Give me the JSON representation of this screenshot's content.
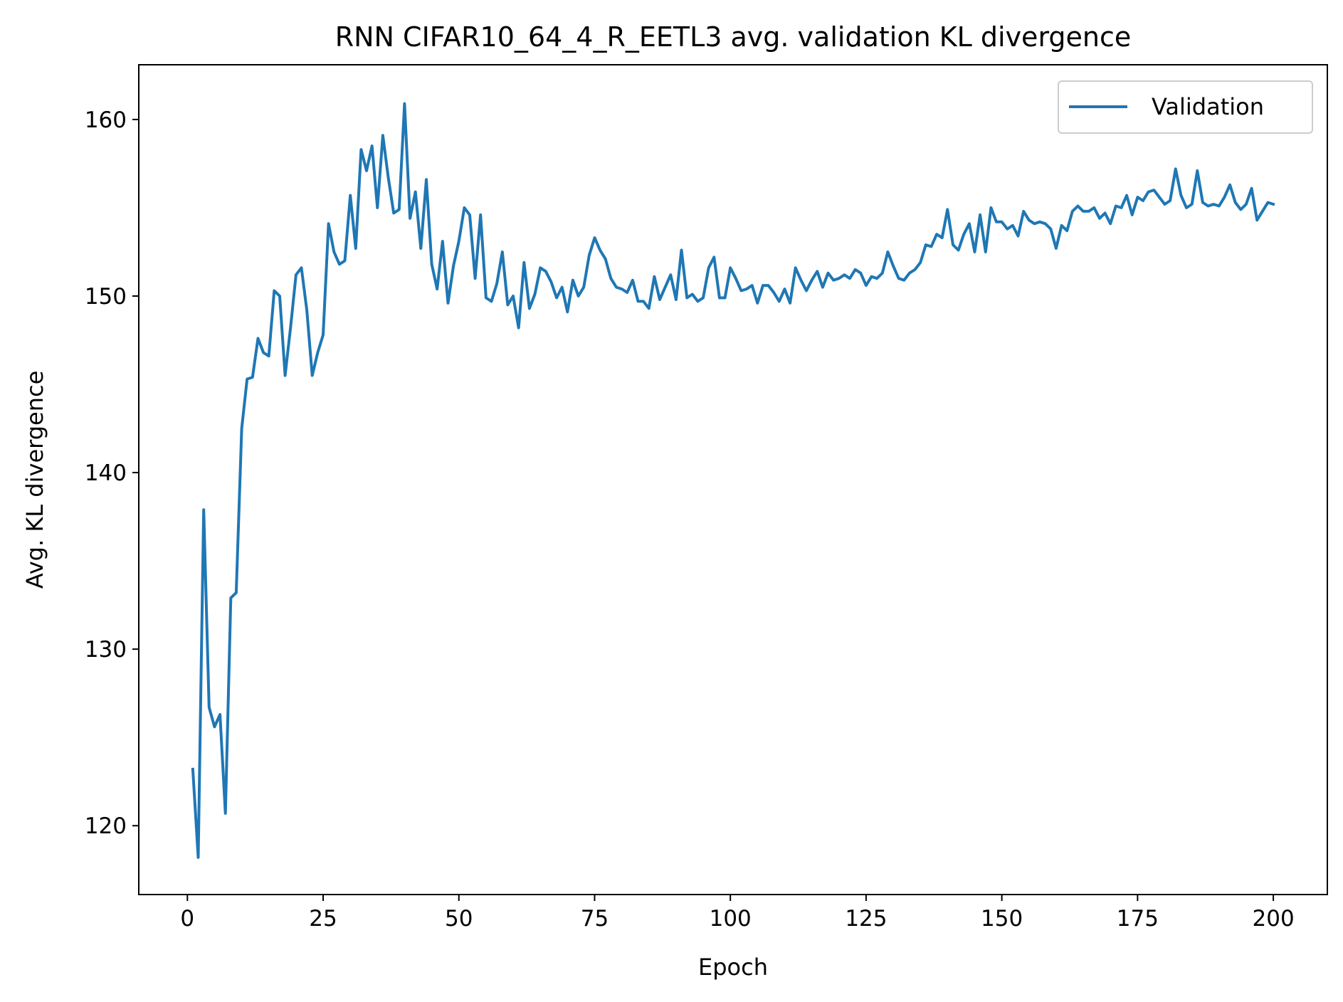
{
  "chart_data": {
    "type": "line",
    "title": "RNN CIFAR10_64_4_R_EETL3 avg. validation KL divergence",
    "xlabel": "Epoch",
    "ylabel": "Avg. KL divergence",
    "xlim": [
      -8.95,
      209.95
    ],
    "ylim": [
      116.1,
      163.1
    ],
    "xticks": [
      0,
      25,
      50,
      75,
      100,
      125,
      150,
      175,
      200
    ],
    "yticks": [
      120,
      130,
      140,
      150,
      160
    ],
    "grid": false,
    "legend": {
      "position": "top-right",
      "entries": [
        "Validation"
      ]
    },
    "colors": {
      "Validation": "#1f77b4"
    },
    "series": [
      {
        "name": "Validation",
        "x": [
          1,
          2,
          3,
          4,
          5,
          6,
          7,
          8,
          9,
          10,
          11,
          12,
          13,
          14,
          15,
          16,
          17,
          18,
          19,
          20,
          21,
          22,
          23,
          24,
          25,
          26,
          27,
          28,
          29,
          30,
          31,
          32,
          33,
          34,
          35,
          36,
          37,
          38,
          39,
          40,
          41,
          42,
          43,
          44,
          45,
          46,
          47,
          48,
          49,
          50,
          51,
          52,
          53,
          54,
          55,
          56,
          57,
          58,
          59,
          60,
          61,
          62,
          63,
          64,
          65,
          66,
          67,
          68,
          69,
          70,
          71,
          72,
          73,
          74,
          75,
          76,
          77,
          78,
          79,
          80,
          81,
          82,
          83,
          84,
          85,
          86,
          87,
          88,
          89,
          90,
          91,
          92,
          93,
          94,
          95,
          96,
          97,
          98,
          99,
          100,
          101,
          102,
          103,
          104,
          105,
          106,
          107,
          108,
          109,
          110,
          111,
          112,
          113,
          114,
          115,
          116,
          117,
          118,
          119,
          120,
          121,
          122,
          123,
          124,
          125,
          126,
          127,
          128,
          129,
          130,
          131,
          132,
          133,
          134,
          135,
          136,
          137,
          138,
          139,
          140,
          141,
          142,
          143,
          144,
          145,
          146,
          147,
          148,
          149,
          150,
          151,
          152,
          153,
          154,
          155,
          156,
          157,
          158,
          159,
          160,
          161,
          162,
          163,
          164,
          165,
          166,
          167,
          168,
          169,
          170,
          171,
          172,
          173,
          174,
          175,
          176,
          177,
          178,
          179,
          180,
          181,
          182,
          183,
          184,
          185,
          186,
          187,
          188,
          189,
          190,
          191,
          192,
          193,
          194,
          195,
          196,
          197,
          198,
          199,
          200
        ],
        "y": [
          123.2,
          118.2,
          137.9,
          126.7,
          125.6,
          126.3,
          120.7,
          132.9,
          133.2,
          142.5,
          145.3,
          145.4,
          147.6,
          146.8,
          146.6,
          150.3,
          150.0,
          145.5,
          148.2,
          151.2,
          151.6,
          149.2,
          145.5,
          146.8,
          147.8,
          154.1,
          152.5,
          151.8,
          152.0,
          155.7,
          152.7,
          158.3,
          157.1,
          158.5,
          155.0,
          159.1,
          156.7,
          154.7,
          154.9,
          160.9,
          154.4,
          155.9,
          152.7,
          156.6,
          151.8,
          150.4,
          153.1,
          149.6,
          151.7,
          153.1,
          155.0,
          154.6,
          151.0,
          154.6,
          149.9,
          149.7,
          150.7,
          152.5,
          149.5,
          150.0,
          148.2,
          151.9,
          149.3,
          150.1,
          151.6,
          151.4,
          150.8,
          149.9,
          150.5,
          149.1,
          150.9,
          150.0,
          150.5,
          152.3,
          153.3,
          152.6,
          152.1,
          151.0,
          150.5,
          150.4,
          150.2,
          150.9,
          149.7,
          149.7,
          149.3,
          151.1,
          149.8,
          150.5,
          151.2,
          149.8,
          152.6,
          149.9,
          150.1,
          149.7,
          149.9,
          151.6,
          152.2,
          149.9,
          149.9,
          151.6,
          151.0,
          150.3,
          150.4,
          150.6,
          149.6,
          150.6,
          150.6,
          150.2,
          149.7,
          150.4,
          149.6,
          151.6,
          150.9,
          150.3,
          150.9,
          151.4,
          150.5,
          151.3,
          150.9,
          151.0,
          151.2,
          151.0,
          151.5,
          151.3,
          150.6,
          151.1,
          151.0,
          151.3,
          152.5,
          151.7,
          151.0,
          150.9,
          151.3,
          151.5,
          151.9,
          152.9,
          152.8,
          153.5,
          153.3,
          154.9,
          152.9,
          152.6,
          153.5,
          154.1,
          152.5,
          154.6,
          152.5,
          155.0,
          154.2,
          154.2,
          153.8,
          154.0,
          153.4,
          154.8,
          154.3,
          154.1,
          154.2,
          154.1,
          153.8,
          152.7,
          154.0,
          153.7,
          154.8,
          155.1,
          154.8,
          154.8,
          155.0,
          154.4,
          154.7,
          154.1,
          155.1,
          155.0,
          155.7,
          154.6,
          155.6,
          155.4,
          155.9,
          156.0,
          155.6,
          155.2,
          155.4,
          157.2,
          155.7,
          155.0,
          155.2,
          157.1,
          155.3,
          155.1,
          155.2,
          155.1,
          155.6,
          156.3,
          155.3,
          154.9,
          155.2,
          156.1,
          154.3,
          154.8,
          155.3,
          155.2
        ]
      }
    ]
  }
}
